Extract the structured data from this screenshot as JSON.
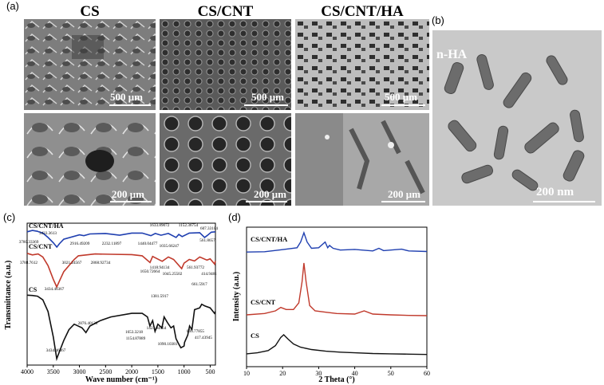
{
  "panels": {
    "a": {
      "letter": "(a)",
      "columns": [
        "CS",
        "CS/CNT",
        "CS/CNT/HA"
      ],
      "scales": [
        "500 μm",
        "500 μm",
        "500 μm",
        "200 μm",
        "200 μm",
        "200 μm"
      ]
    },
    "b": {
      "letter": "(b)",
      "label": "n-HA",
      "scale": "200 nm"
    },
    "c": {
      "letter": "(c)"
    },
    "d": {
      "letter": "(d)"
    }
  },
  "chart_data": [
    {
      "type": "line",
      "panel": "c",
      "xlabel": "Wave number (cm⁻¹)",
      "ylabel": "Transmittance (a.u.)",
      "xlim": [
        4000,
        400
      ],
      "x_ticks": [
        "4000",
        "3500",
        "3000",
        "2500",
        "2000",
        "1500",
        "1000",
        "500"
      ],
      "series": [
        {
          "name": "CS/CNT/HA",
          "color": "#1f3fb0",
          "x": [
            4000,
            3900,
            3800,
            3780,
            3700,
            3600,
            3500,
            3433,
            3380,
            3300,
            3000,
            2916,
            2800,
            2500,
            2232,
            2000,
            1800,
            1634,
            1550,
            1440,
            1300,
            1152,
            1100,
            1036,
            900,
            700,
            607,
            561,
            480,
            400
          ],
          "y": [
            0.5,
            0.2,
            0.4,
            0.5,
            0.8,
            1.8,
            3.0,
            4.0,
            3.2,
            2.2,
            1.2,
            1.4,
            1.0,
            0.9,
            1.3,
            0.8,
            0.8,
            1.4,
            0.9,
            1.3,
            0.9,
            1.8,
            1.1,
            1.6,
            0.8,
            0.7,
            1.8,
            1.4,
            0.6,
            0.5
          ]
        },
        {
          "name": "CS/CNT",
          "color": "#c0392b",
          "x": [
            4000,
            3900,
            3789,
            3700,
            3600,
            3500,
            3434,
            3380,
            3300,
            3100,
            3021,
            2869,
            2700,
            2400,
            2000,
            1800,
            1651,
            1600,
            1418,
            1300,
            1200,
            1045,
            1000,
            900,
            800,
            700,
            561,
            500,
            415,
            400
          ],
          "y": [
            1.0,
            1.5,
            1.2,
            2.2,
            5.0,
            9.5,
            12.0,
            10.0,
            7.0,
            3.0,
            1.8,
            1.5,
            1.2,
            1.3,
            1.4,
            1.8,
            4.0,
            2.0,
            3.6,
            2.2,
            3.0,
            6.0,
            4.2,
            3.0,
            3.5,
            2.2,
            3.2,
            2.8,
            4.5,
            3.5
          ]
        },
        {
          "name": "CS",
          "color": "#111111",
          "x": [
            4000,
            3900,
            3800,
            3700,
            3600,
            3500,
            3434,
            3380,
            3300,
            3200,
            3100,
            2950,
            2876,
            2800,
            2600,
            2400,
            2000,
            1800,
            1700,
            1653,
            1600,
            1555,
            1500,
            1423,
            1381,
            1320,
            1250,
            1200,
            1154,
            1100,
            1060,
            1000,
            990,
            930,
            895,
            850,
            800,
            700,
            662,
            600,
            500,
            417,
            400
          ],
          "y": [
            0.5,
            0.6,
            0.8,
            1.8,
            5.0,
            12.0,
            18.0,
            16.0,
            13.0,
            10.0,
            8.5,
            9.5,
            10.8,
            9.0,
            7.5,
            6.5,
            5.5,
            5.5,
            6.5,
            9.0,
            7.5,
            10.5,
            8.5,
            9.5,
            6.5,
            8.0,
            9.5,
            9.0,
            12.5,
            14.0,
            15.0,
            14.5,
            13.5,
            11.5,
            9.0,
            10.0,
            4.5,
            4.0,
            3.0,
            3.5,
            4.0,
            5.5,
            5.0
          ]
        }
      ],
      "annotations": [
        {
          "series": "CS/CNT/HA",
          "text": "1633.89072"
        },
        {
          "series": "CS/CNT/HA",
          "text": "1152.36754"
        },
        {
          "series": "CS/CNT/HA",
          "text": "607.33104"
        },
        {
          "series": "CS/CNT/HA",
          "text": "3433.3613"
        },
        {
          "series": "CS/CNT/HA",
          "text": "3780.33369"
        },
        {
          "series": "CS/CNT/HA",
          "text": "2916.49209"
        },
        {
          "series": "CS/CNT/HA",
          "text": "2232.11897"
        },
        {
          "series": "CS/CNT/HA",
          "text": "1440.04477"
        },
        {
          "series": "CS/CNT/HA",
          "text": "1035.66247"
        },
        {
          "series": "CS/CNT/HA",
          "text": "561.8657"
        },
        {
          "series": "CS/CNT",
          "text": "3788.7612"
        },
        {
          "series": "CS/CNT",
          "text": "3021.24567"
        },
        {
          "series": "CS/CNT",
          "text": "2868.92734"
        },
        {
          "series": "CS/CNT",
          "text": "1418.94134"
        },
        {
          "series": "CS/CNT",
          "text": "561.93772"
        },
        {
          "series": "CS/CNT",
          "text": "1650.72664"
        },
        {
          "series": "CS/CNT",
          "text": "1045.25502"
        },
        {
          "series": "CS/CNT",
          "text": "414.9481"
        },
        {
          "series": "CS/CNT",
          "text": "3434.46367"
        },
        {
          "series": "CS",
          "text": "661.5917"
        },
        {
          "series": "CS",
          "text": "1381.5917"
        },
        {
          "series": "CS",
          "text": "2876.40138"
        },
        {
          "series": "CS",
          "text": "1653.3218"
        },
        {
          "series": "CS",
          "text": "1423.94464"
        },
        {
          "series": "CS",
          "text": "1154.87889"
        },
        {
          "series": "CS",
          "text": "895.77855"
        },
        {
          "series": "CS",
          "text": "417.43945"
        },
        {
          "series": "CS",
          "text": "1090.10381"
        },
        {
          "series": "CS",
          "text": "3434.46367"
        }
      ]
    },
    {
      "type": "line",
      "panel": "d",
      "xlabel": "2 Theta (°)",
      "ylabel": "Intensity (a.u.)",
      "xlim": [
        10,
        60
      ],
      "x_ticks": [
        "10",
        "20",
        "30",
        "40",
        "50",
        "60"
      ],
      "series": [
        {
          "name": "CS/CNT/HA",
          "color": "#1f3fb0",
          "x": [
            10,
            15,
            19,
            21,
            24,
            25,
            25.9,
            26.8,
            28,
            30,
            31.8,
            32.5,
            33,
            34,
            36,
            40,
            45,
            46.7,
            48,
            50,
            53,
            55,
            60
          ],
          "y": [
            0.5,
            0.6,
            1.2,
            1.5,
            2.0,
            4.0,
            7.2,
            4.0,
            1.8,
            2.0,
            4.0,
            2.0,
            2.8,
            1.8,
            1.2,
            1.4,
            0.9,
            1.8,
            1.0,
            1.2,
            1.5,
            0.9,
            0.7
          ]
        },
        {
          "name": "CS/CNT",
          "color": "#c0392b",
          "x": [
            10,
            15,
            18,
            19.5,
            21,
            23,
            24.5,
            25.4,
            25.9,
            26.5,
            27.5,
            29,
            32,
            35,
            40,
            42.6,
            45,
            50,
            55,
            60
          ],
          "y": [
            1.5,
            2.0,
            3.0,
            4.3,
            3.5,
            3.5,
            6.0,
            14.0,
            21.0,
            14.0,
            5.0,
            3.0,
            2.5,
            2.0,
            1.8,
            3.0,
            1.8,
            1.5,
            1.3,
            1.2
          ]
        },
        {
          "name": "CS",
          "color": "#111111",
          "x": [
            10,
            13,
            16,
            18,
            19.5,
            20.3,
            21.5,
            23,
            25,
            28,
            32,
            36,
            40,
            45,
            50,
            55,
            60
          ],
          "y": [
            1.0,
            1.3,
            2.0,
            3.5,
            6.0,
            6.8,
            5.5,
            4.0,
            3.0,
            2.3,
            1.8,
            1.5,
            1.3,
            1.1,
            1.0,
            0.9,
            0.8
          ]
        }
      ]
    }
  ]
}
